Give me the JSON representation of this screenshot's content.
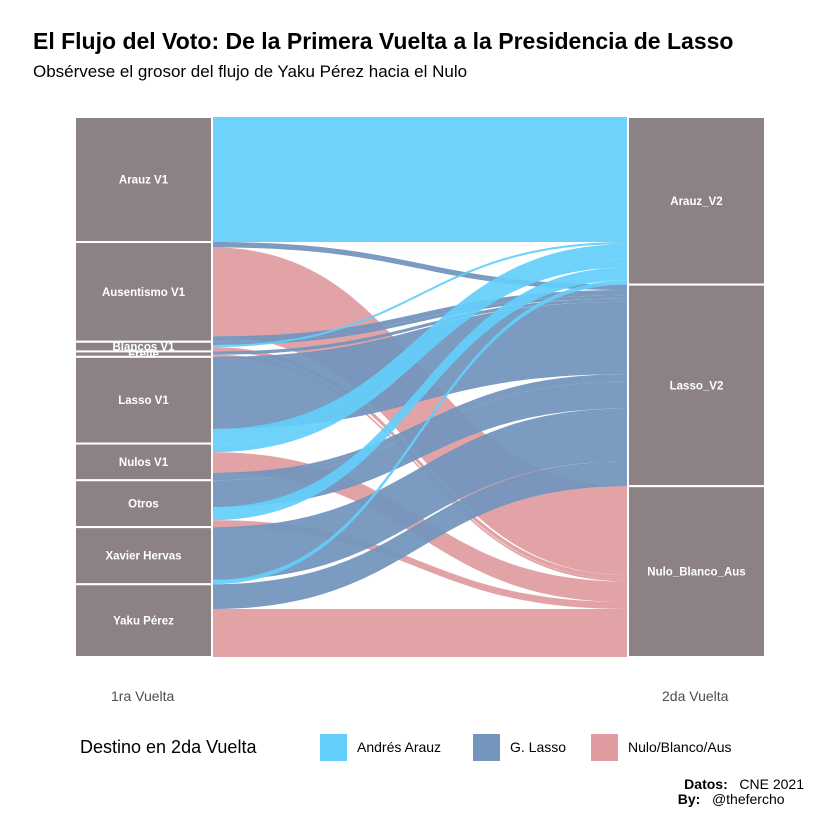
{
  "title": "El Flujo del Voto: De la Primera Vuelta a la Presidencia de Lasso",
  "subtitle": "Obsérvese el grosor del flujo de Yaku Pérez hacia el Nulo",
  "caption": {
    "datos_label": "Datos:",
    "datos_value": "CNE 2021",
    "by_label": "By:",
    "by_value": "@thefercho"
  },
  "legend": {
    "title": "Destino en 2da Vuelta",
    "items": [
      {
        "label": "Andrés Arauz",
        "color": "#63cefa"
      },
      {
        "label": "G. Lasso",
        "color": "#7496bd"
      },
      {
        "label": "Nulo/Blanco/Aus",
        "color": "#df9ba0"
      }
    ]
  },
  "chart_data": {
    "type": "alluvial",
    "axes": [
      "1ra Vuelta",
      "2da Vuelta"
    ],
    "stratum_color": "#8c8283",
    "sources": [
      "Arauz V1",
      "Ausentismo V1",
      "Blancos V1",
      "Frelle",
      "Lasso V1",
      "Nulos V1",
      "Otros",
      "Xavier Hervas",
      "Yaku Pérez"
    ],
    "targets": [
      "Arauz_V2",
      "Lasso_V2",
      "Nulo_Blanco_Aus"
    ],
    "target_colors": {
      "Arauz_V2": "#63cefa",
      "Lasso_V2": "#7496bd",
      "Nulo_Blanco_Aus": "#df9ba0"
    },
    "flows": [
      {
        "from": "Arauz V1",
        "to": "Arauz_V2",
        "value": 23.2
      },
      {
        "from": "Ausentismo V1",
        "to": "Lasso_V2",
        "value": 1.0
      },
      {
        "from": "Ausentismo V1",
        "to": "Nulo_Blanco_Aus",
        "value": 16.5
      },
      {
        "from": "Ausentismo V1",
        "to": "Lasso_V2",
        "value": 1.0
      },
      {
        "from": "Blancos V1",
        "to": "Lasso_V2",
        "value": 0.6
      },
      {
        "from": "Blancos V1",
        "to": "Arauz_V2",
        "value": 0.4
      },
      {
        "from": "Blancos V1",
        "to": "Nulo_Blanco_Aus",
        "value": 0.8
      },
      {
        "from": "Frelle",
        "to": "Lasso_V2",
        "value": 0.6
      },
      {
        "from": "Frelle",
        "to": "Nulo_Blanco_Aus",
        "value": 0.4
      },
      {
        "from": "Lasso V1",
        "to": "Lasso_V2",
        "value": 13.4
      },
      {
        "from": "Lasso V1",
        "to": "Arauz_V2",
        "value": 2.7
      },
      {
        "from": "Nulos V1",
        "to": "Arauz_V2",
        "value": 1.6
      },
      {
        "from": "Nulos V1",
        "to": "Nulo_Blanco_Aus",
        "value": 3.8
      },
      {
        "from": "Nulos V1",
        "to": "Lasso_V2",
        "value": 1.4
      },
      {
        "from": "Otros",
        "to": "Lasso_V2",
        "value": 5.0
      },
      {
        "from": "Otros",
        "to": "Arauz_V2",
        "value": 2.4
      },
      {
        "from": "Otros",
        "to": "Nulo_Blanco_Aus",
        "value": 1.3
      },
      {
        "from": "Xavier Hervas",
        "to": "Lasso_V2",
        "value": 9.8
      },
      {
        "from": "Xavier Hervas",
        "to": "Arauz_V2",
        "value": 0.8
      },
      {
        "from": "Yaku Pérez",
        "to": "Lasso_V2",
        "value": 4.6
      },
      {
        "from": "Yaku Pérez",
        "to": "Nulo_Blanco_Aus",
        "value": 8.9
      }
    ]
  }
}
